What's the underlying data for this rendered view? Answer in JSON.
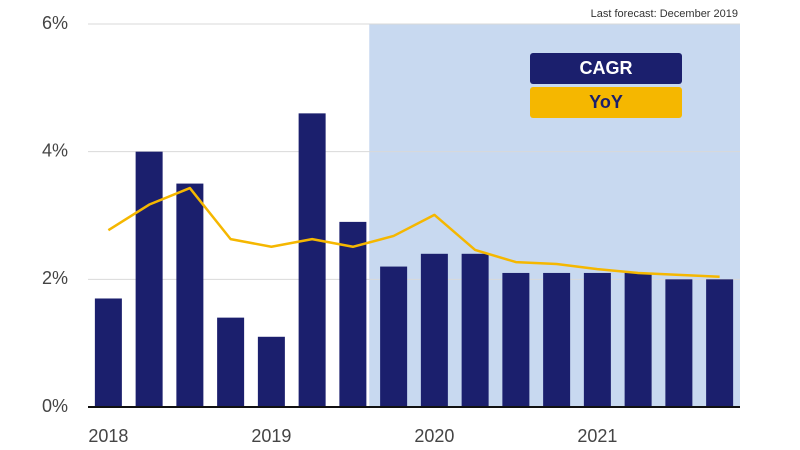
{
  "chart_data": {
    "type": "bar",
    "annotation": "Last forecast: December 2019",
    "categories": [
      "2018",
      null,
      null,
      null,
      "2019",
      null,
      null,
      null,
      "2020",
      null,
      null,
      null,
      "2021",
      null,
      null,
      null
    ],
    "series": [
      {
        "name": "CAGR",
        "type": "bar",
        "color": "#1b1f6d",
        "values": [
          1.7,
          4.0,
          3.5,
          1.4,
          1.1,
          4.6,
          2.9,
          2.2,
          2.4,
          2.4,
          2.1,
          2.1,
          2.1,
          2.1,
          2.0,
          2.0
        ]
      },
      {
        "name": "YoY",
        "type": "line",
        "color": "#f5b700",
        "values": [
          2.77,
          3.17,
          3.43,
          2.63,
          2.51,
          2.63,
          2.51,
          2.68,
          3.01,
          2.46,
          2.27,
          2.24,
          2.16,
          2.1,
          2.07,
          2.04
        ]
      }
    ],
    "ylim": [
      0,
      6
    ],
    "yticks": [
      {
        "value": 0,
        "label": "0%"
      },
      {
        "value": 2,
        "label": "2%"
      },
      {
        "value": 4,
        "label": "4%"
      },
      {
        "value": 6,
        "label": "6%"
      }
    ],
    "grid": true,
    "shaded_from": 7,
    "shade_color": "#c8d9f0"
  }
}
